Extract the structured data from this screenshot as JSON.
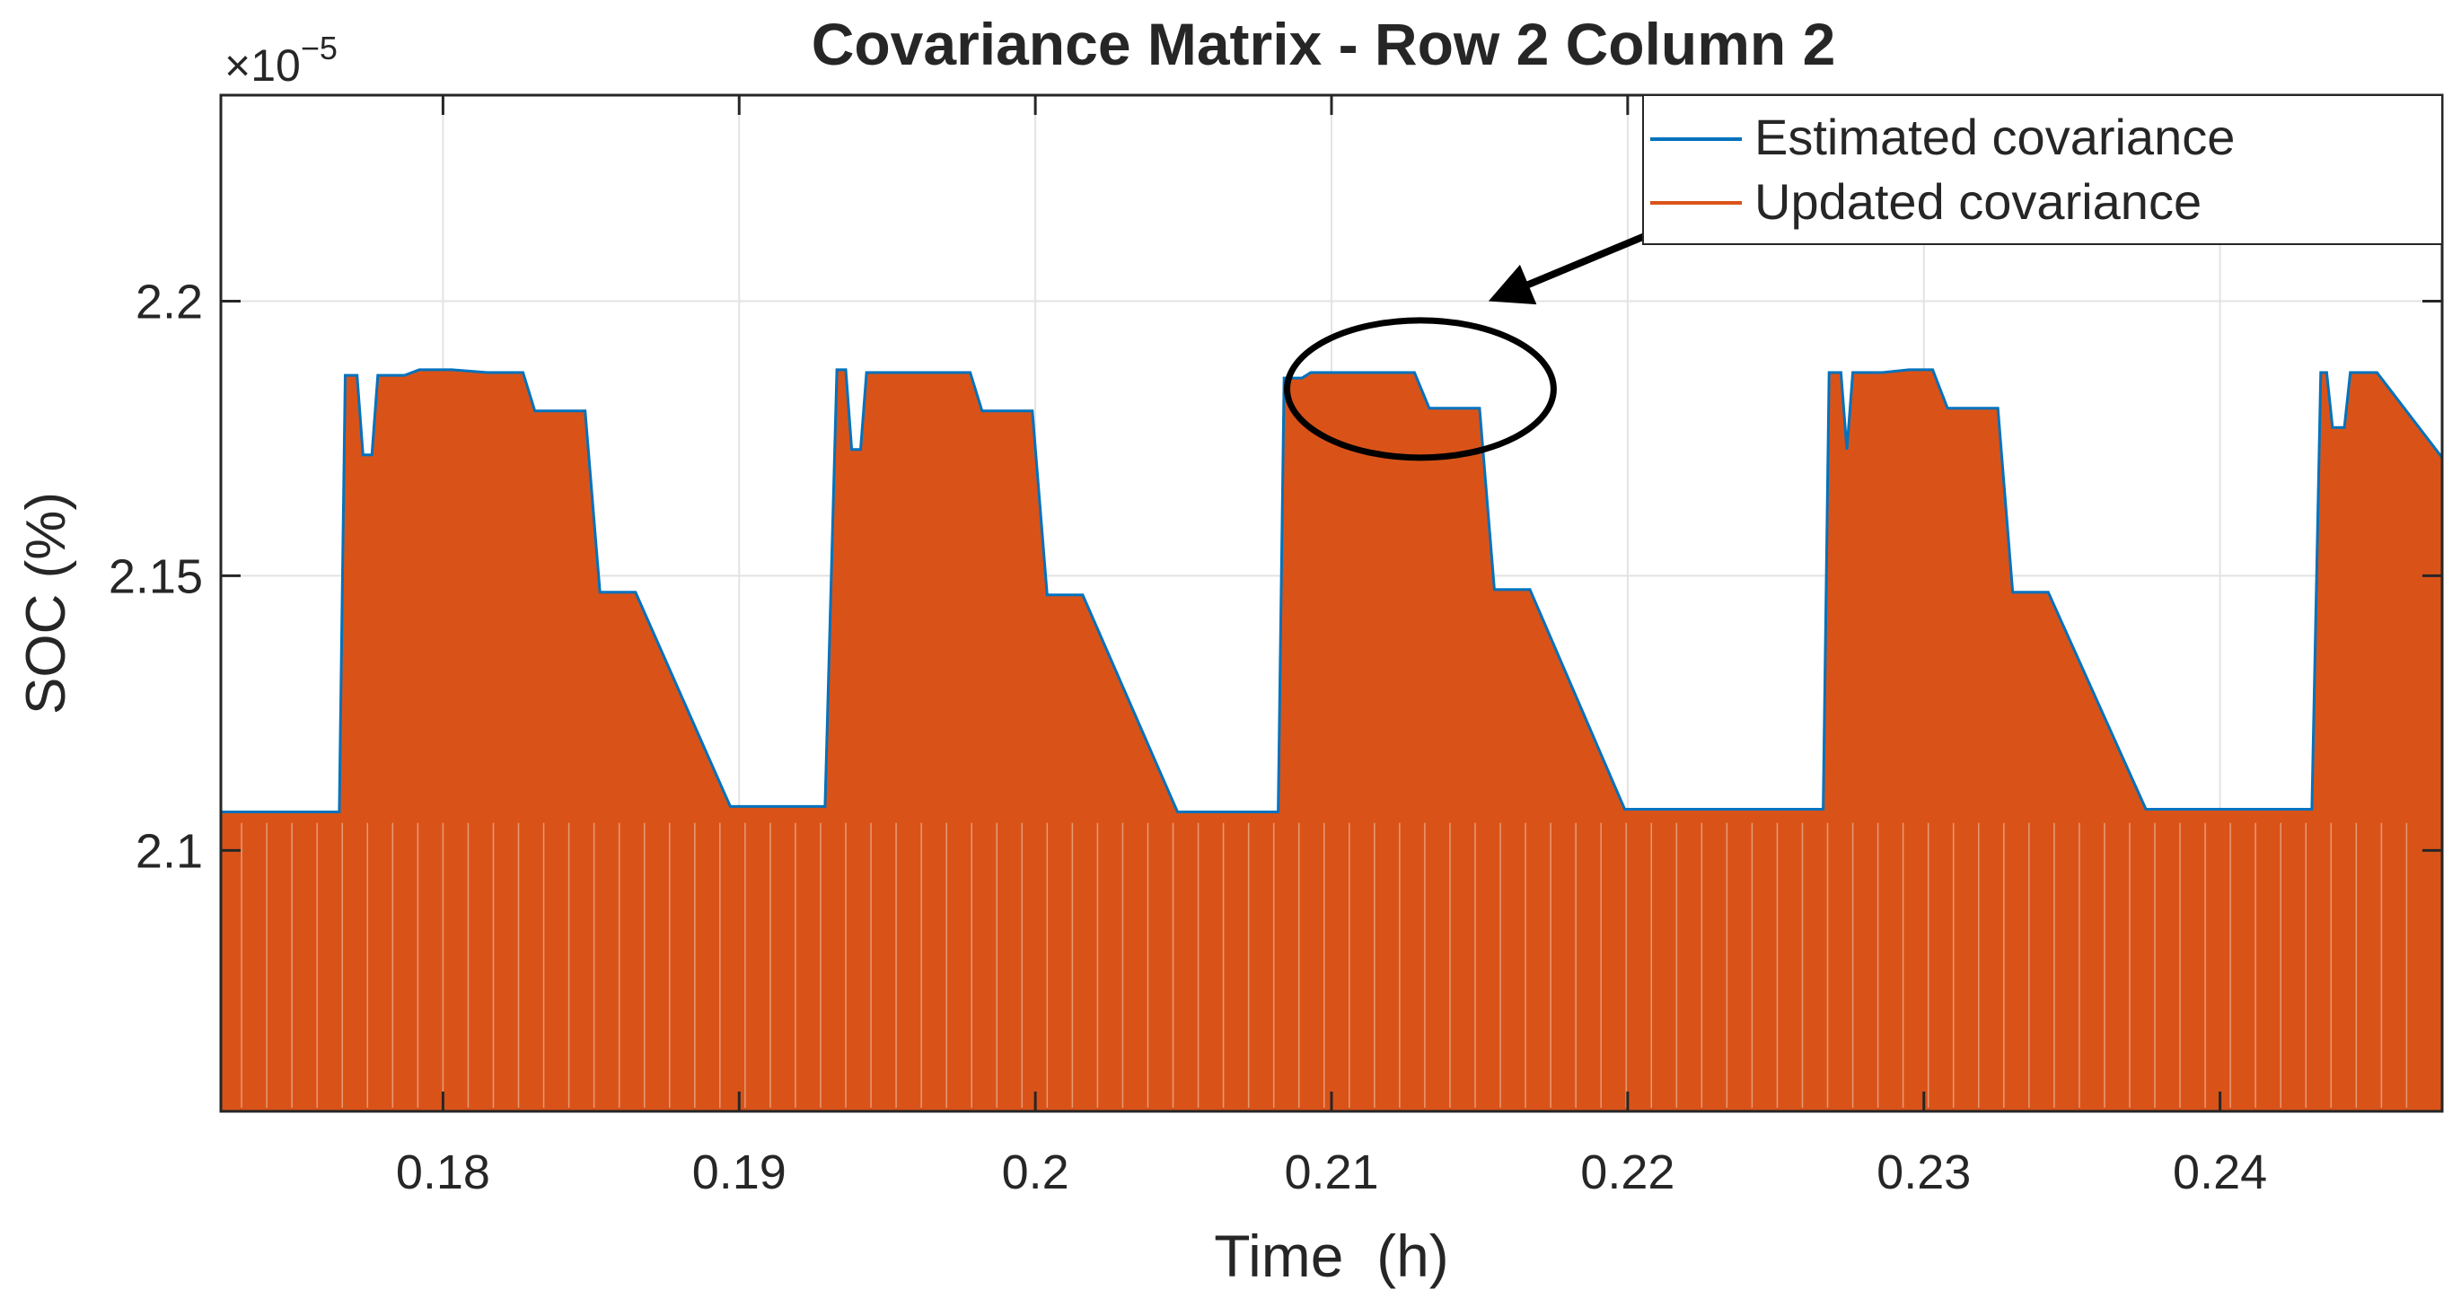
{
  "chart_data": {
    "type": "area",
    "title": "Covariance Matrix - Row 2 Column 2",
    "xlabel": "Time  (h)",
    "ylabel": "SOC (%)",
    "exponent_base": "×10",
    "exponent_power": "−5",
    "xlim": [
      0.1725,
      0.2475
    ],
    "ylim": [
      2.0525,
      2.2375
    ],
    "x_ticks": [
      0.18,
      0.19,
      0.2,
      0.21,
      0.22,
      0.23,
      0.24
    ],
    "x_tick_labels": [
      "0.18",
      "0.19",
      "0.2",
      "0.21",
      "0.22",
      "0.23",
      "0.24"
    ],
    "y_ticks": [
      2.1,
      2.15,
      2.2
    ],
    "y_tick_labels": [
      "2.1",
      "2.15",
      "2.2"
    ],
    "grid": true,
    "legend_position": "top-right",
    "series": [
      {
        "name": "Estimated covariance",
        "color": "#0072BD",
        "x": [
          0.1725,
          0.1765,
          0.1767,
          0.1771,
          0.1773,
          0.1776,
          0.1778,
          0.1787,
          0.1792,
          0.1803,
          0.1815,
          0.1827,
          0.1831,
          0.1848,
          0.1853,
          0.1855,
          0.1865,
          0.1897,
          0.1929,
          0.1933,
          0.1936,
          0.1938,
          0.1941,
          0.1943,
          0.1962,
          0.1966,
          0.1978,
          0.1982,
          0.1999,
          0.2004,
          0.2006,
          0.2016,
          0.2048,
          0.2082,
          0.2084,
          0.209,
          0.2093,
          0.2095,
          0.2112,
          0.2128,
          0.2133,
          0.215,
          0.2155,
          0.2157,
          0.2167,
          0.2199,
          0.2242,
          0.2266,
          0.2268,
          0.2272,
          0.2274,
          0.2276,
          0.2286,
          0.2295,
          0.2303,
          0.2308,
          0.2325,
          0.233,
          0.2332,
          0.2342,
          0.2375,
          0.241,
          0.2414,
          0.2431,
          0.2434,
          0.2436,
          0.2438,
          0.2442,
          0.2444,
          0.2453,
          0.2475
        ],
        "values": [
          2.107,
          2.107,
          2.1865,
          2.1865,
          2.172,
          2.172,
          2.1865,
          2.1865,
          2.1875,
          2.1875,
          2.187,
          2.187,
          2.18,
          2.18,
          2.147,
          2.147,
          2.147,
          2.108,
          2.108,
          2.1875,
          2.1875,
          2.173,
          2.173,
          2.187,
          2.187,
          2.187,
          2.187,
          2.18,
          2.18,
          2.1465,
          2.1465,
          2.1465,
          2.107,
          2.107,
          2.186,
          2.186,
          2.187,
          2.187,
          2.187,
          2.187,
          2.1805,
          2.1805,
          2.1475,
          2.1475,
          2.1475,
          2.1075,
          2.1075,
          2.1075,
          2.187,
          2.187,
          2.173,
          2.187,
          2.187,
          2.1875,
          2.1875,
          2.1805,
          2.1805,
          2.147,
          2.147,
          2.147,
          2.1075,
          2.1075,
          2.1075,
          2.1075,
          2.187,
          2.187,
          2.177,
          2.177,
          2.187,
          2.187,
          2.1715
        ]
      },
      {
        "name": "Updated covariance",
        "color": "#D95319",
        "x": [
          0.1725,
          0.1765,
          0.1767,
          0.1771,
          0.1773,
          0.1776,
          0.1778,
          0.1787,
          0.1792,
          0.1803,
          0.1815,
          0.1827,
          0.1831,
          0.1848,
          0.1853,
          0.1855,
          0.1865,
          0.1897,
          0.1929,
          0.1933,
          0.1936,
          0.1938,
          0.1941,
          0.1943,
          0.1962,
          0.1966,
          0.1978,
          0.1982,
          0.1999,
          0.2004,
          0.2006,
          0.2016,
          0.2048,
          0.2082,
          0.2084,
          0.209,
          0.2093,
          0.2095,
          0.2112,
          0.2128,
          0.2133,
          0.215,
          0.2155,
          0.2157,
          0.2167,
          0.2199,
          0.2242,
          0.2266,
          0.2268,
          0.2272,
          0.2274,
          0.2276,
          0.2286,
          0.2295,
          0.2303,
          0.2308,
          0.2325,
          0.233,
          0.2332,
          0.2342,
          0.2375,
          0.241,
          0.2414,
          0.2431,
          0.2434,
          0.2436,
          0.2438,
          0.2442,
          0.2444,
          0.2453,
          0.2475
        ],
        "values": [
          2.107,
          2.107,
          2.1865,
          2.1865,
          2.172,
          2.172,
          2.1865,
          2.1865,
          2.1875,
          2.1875,
          2.187,
          2.187,
          2.18,
          2.18,
          2.147,
          2.147,
          2.147,
          2.108,
          2.108,
          2.1875,
          2.1875,
          2.173,
          2.173,
          2.187,
          2.187,
          2.187,
          2.187,
          2.18,
          2.18,
          2.1465,
          2.1465,
          2.1465,
          2.107,
          2.107,
          2.186,
          2.186,
          2.187,
          2.187,
          2.187,
          2.187,
          2.1805,
          2.1805,
          2.1475,
          2.1475,
          2.1475,
          2.1075,
          2.1075,
          2.1075,
          2.187,
          2.187,
          2.173,
          2.187,
          2.187,
          2.1875,
          2.1875,
          2.1805,
          2.1805,
          2.147,
          2.147,
          2.147,
          2.1075,
          2.1075,
          2.1075,
          2.1075,
          2.187,
          2.187,
          2.177,
          2.177,
          2.187,
          2.187,
          2.1715
        ]
      }
    ],
    "annotations": [
      {
        "type": "ellipse",
        "center": [
          0.213,
          2.184
        ],
        "half_width": 0.0045,
        "half_height": 0.0125
      },
      {
        "type": "arrow",
        "from": [
          0.2289,
          2.2305
        ],
        "to": [
          0.2153,
          2.2
        ],
        "color": "#000000"
      }
    ]
  }
}
